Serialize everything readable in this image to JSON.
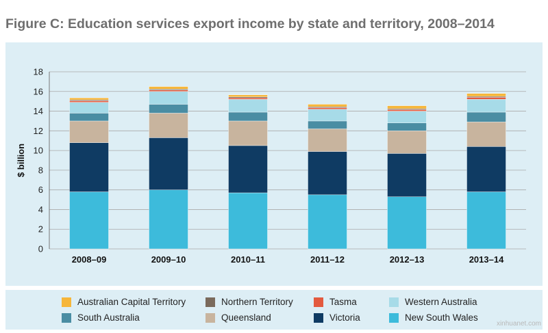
{
  "figure": {
    "title": "Figure C: Education services export income by state and territory, 2008–2014"
  },
  "chart_data": {
    "type": "bar",
    "stacked": true,
    "categories": [
      "2008–09",
      "2009–10",
      "2010–11",
      "2011–12",
      "2012–13",
      "2013–14"
    ],
    "ylabel": "$ billion",
    "xlabel": "",
    "ylim": [
      0,
      18
    ],
    "yticks": [
      "0",
      "2",
      "4",
      "6",
      "8",
      "10",
      "12",
      "14",
      "16",
      "18"
    ],
    "grid": true,
    "legend_position": "bottom",
    "series": [
      {
        "name": "New South Wales",
        "color": "#3dbbdb",
        "values": [
          5.8,
          6.0,
          5.7,
          5.5,
          5.3,
          5.8
        ]
      },
      {
        "name": "Victoria",
        "color": "#0f3b63",
        "values": [
          5.0,
          5.3,
          4.8,
          4.4,
          4.4,
          4.6
        ]
      },
      {
        "name": "Queensland",
        "color": "#c8b49e",
        "values": [
          2.2,
          2.5,
          2.5,
          2.3,
          2.3,
          2.5
        ]
      },
      {
        "name": "South Australia",
        "color": "#4a8da3",
        "values": [
          0.8,
          0.9,
          0.9,
          0.8,
          0.8,
          1.0
        ]
      },
      {
        "name": "Western Australia",
        "color": "#a7dbe8",
        "values": [
          1.1,
          1.3,
          1.3,
          1.2,
          1.2,
          1.3
        ]
      },
      {
        "name": "Tasmania",
        "color": "#e35a3f",
        "values": [
          0.15,
          0.15,
          0.15,
          0.15,
          0.15,
          0.2
        ]
      },
      {
        "name": "Northern Territory",
        "color": "#7a6a5c",
        "values": [
          0.1,
          0.1,
          0.1,
          0.1,
          0.1,
          0.1
        ]
      },
      {
        "name": "Australian Capital Territory",
        "color": "#f6b63a",
        "values": [
          0.2,
          0.25,
          0.2,
          0.25,
          0.3,
          0.3
        ]
      }
    ]
  },
  "legend": {
    "items": [
      {
        "label": "Australian Capital Territory",
        "color": "#f6b63a"
      },
      {
        "label": "Northern Territory",
        "color": "#7a6a5c"
      },
      {
        "label": "Tasma",
        "color": "#e35a3f"
      },
      {
        "label": "Western Australia",
        "color": "#a7dbe8"
      },
      {
        "label": "South Australia",
        "color": "#4a8da3"
      },
      {
        "label": "Queensland",
        "color": "#c8b49e"
      },
      {
        "label": "Victoria",
        "color": "#0f3b63"
      },
      {
        "label": "New South Wales",
        "color": "#3dbbdb"
      }
    ]
  },
  "watermark": {
    "text": "xinhuanet.com"
  }
}
